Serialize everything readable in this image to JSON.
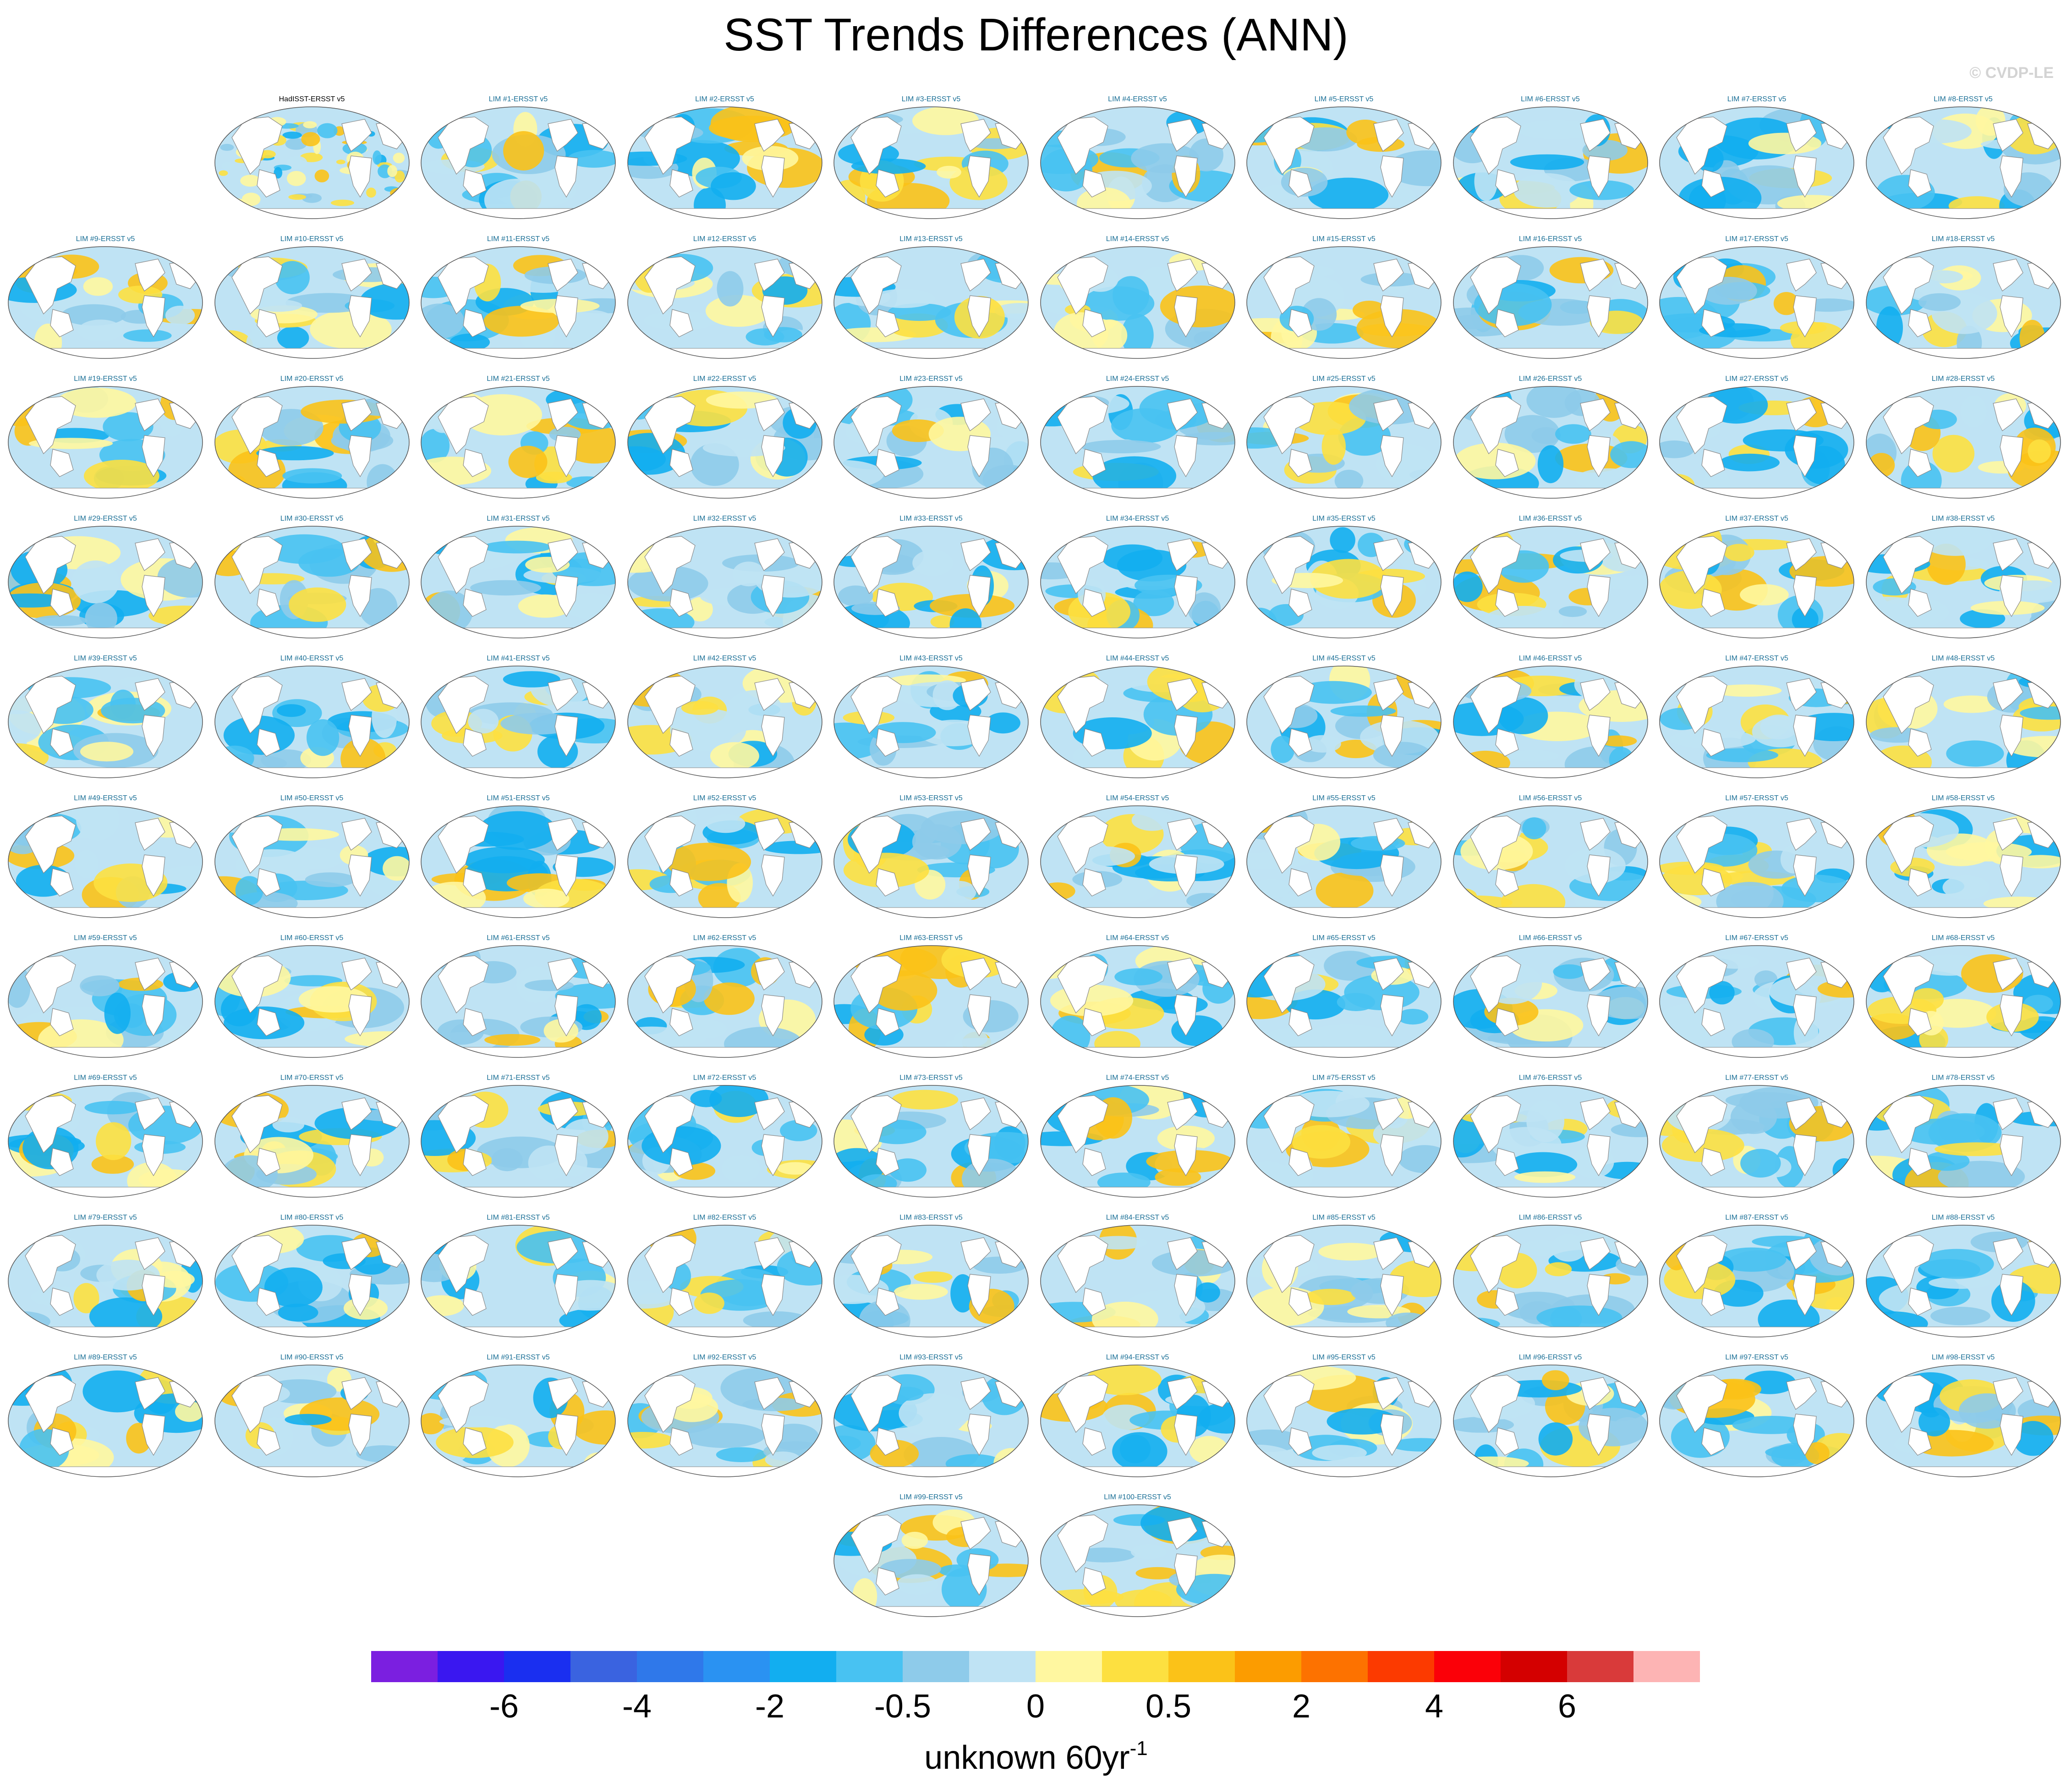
{
  "title": "SST Trends Differences (ANN)",
  "copyright": "© CVDP-LE",
  "observation_panel": "HadISST-ERSST v5",
  "panel_title_pattern": "LIM #{n}-ERSST v5",
  "member_count": 100,
  "colorbar": {
    "colors": [
      "#7b1fe0",
      "#3a17f0",
      "#1a2ff0",
      "#3a63e0",
      "#2f78ea",
      "#2a92f2",
      "#12aef0",
      "#48c2f2",
      "#8ecbea",
      "#bfe3f4",
      "#fff7a0",
      "#fde040",
      "#fbc218",
      "#fc9c00",
      "#fd7200",
      "#fc3a00",
      "#fb0008",
      "#d40000",
      "#d93a3a",
      "#fdb4b4"
    ],
    "tick_labels": [
      "-6",
      "-4",
      "-2",
      "-0.5",
      "0",
      "0.5",
      "2",
      "4",
      "6"
    ],
    "units_main": "unknown 60yr",
    "units_sup": "-1"
  }
}
